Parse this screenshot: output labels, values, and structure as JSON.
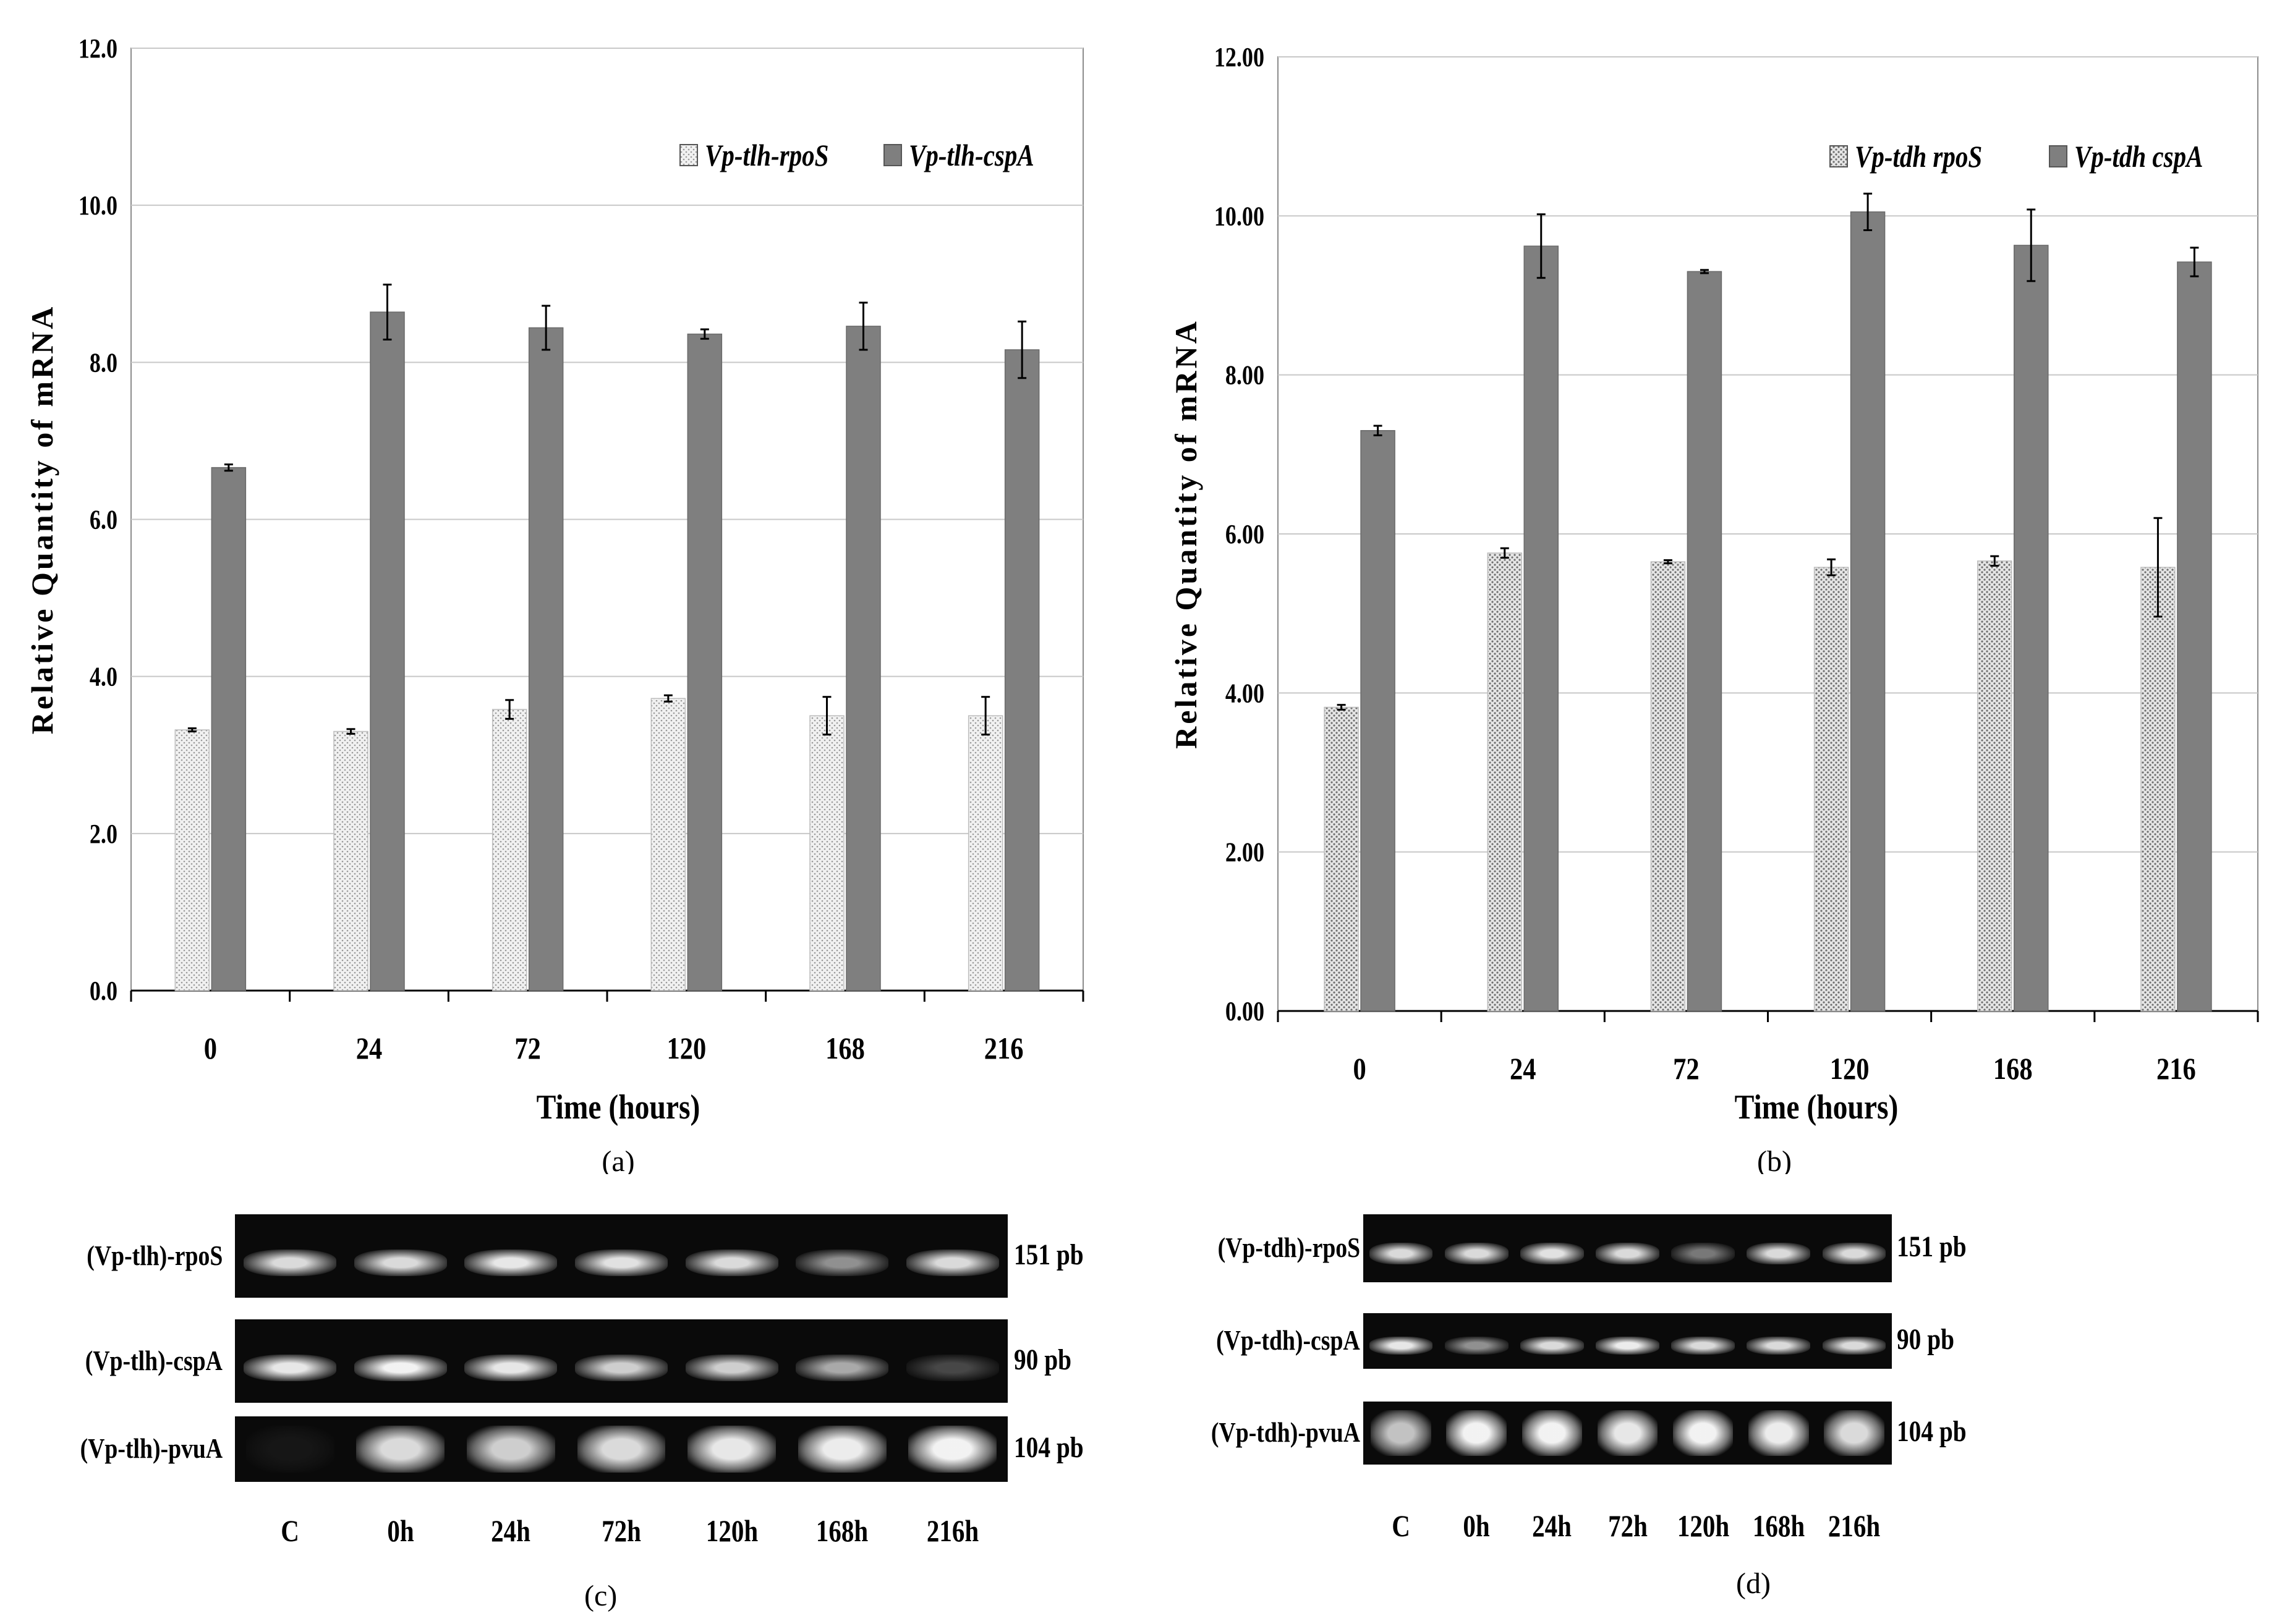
{
  "chart_data": [
    {
      "type": "bar",
      "caption": "(a)",
      "categories": [
        "0",
        "24",
        "72",
        "120",
        "168",
        "216"
      ],
      "xlabel": "Time (hours)",
      "ylabel": "Relative Quantity of mRNA",
      "ylim": [
        0,
        12
      ],
      "yticks": [
        "0.0",
        "2.0",
        "4.0",
        "6.0",
        "8.0",
        "10.0",
        "12.0"
      ],
      "grid": true,
      "legend": "top-right",
      "series": [
        {
          "name": "Vp-tlh-rpoS",
          "pattern": "dotted-light",
          "values": [
            3.32,
            3.3,
            3.58,
            3.72,
            3.5,
            3.5
          ],
          "errors": [
            0.02,
            0.03,
            0.12,
            0.04,
            0.24,
            0.24
          ]
        },
        {
          "name": "Vp-tlh-cspA",
          "color": "#7f7f7f",
          "values": [
            6.66,
            8.64,
            8.44,
            8.36,
            8.46,
            8.16
          ],
          "errors": [
            0.04,
            0.35,
            0.28,
            0.06,
            0.3,
            0.36
          ]
        }
      ]
    },
    {
      "type": "bar",
      "caption": "(b)",
      "categories": [
        "0",
        "24",
        "72",
        "120",
        "168",
        "216"
      ],
      "xlabel": "Time (hours)",
      "ylabel": "Relative Quantity of mRNA",
      "ylim": [
        0,
        12
      ],
      "yticks": [
        "0.00",
        "2.00",
        "4.00",
        "6.00",
        "8.00",
        "10.00",
        "12.00"
      ],
      "grid": true,
      "legend": "top-right",
      "series": [
        {
          "name": "Vp-tdh rpoS",
          "pattern": "dotted-dark",
          "values": [
            3.82,
            5.76,
            5.65,
            5.58,
            5.66,
            5.58
          ],
          "errors": [
            0.03,
            0.06,
            0.02,
            0.1,
            0.06,
            0.62
          ]
        },
        {
          "name": "Vp-tdh cspA",
          "color": "#7f7f7f",
          "values": [
            7.3,
            9.62,
            9.3,
            10.05,
            9.63,
            9.42
          ],
          "errors": [
            0.06,
            0.4,
            0.02,
            0.23,
            0.45,
            0.18
          ]
        }
      ]
    }
  ],
  "gels": [
    {
      "caption": "(c)",
      "rows": [
        {
          "label": "(Vp-tlh)-rpoS",
          "size": "151 pb"
        },
        {
          "label": "(Vp-tlh)-cspA",
          "size": "90 pb"
        },
        {
          "label": "(Vp-tlh)-pvuA",
          "size": "104 pb"
        }
      ],
      "lanes": [
        "C",
        "0h",
        "24h",
        "72h",
        "120h",
        "168h",
        "216h"
      ]
    },
    {
      "caption": "(d)",
      "rows": [
        {
          "label": "(Vp-tdh)-rpoS",
          "size": "151 pb"
        },
        {
          "label": "(Vp-tdh)-cspA",
          "size": "90 pb"
        },
        {
          "label": "(Vp-tdh)-pvuA",
          "size": "104 pb"
        }
      ],
      "lanes": [
        "C",
        "0h",
        "24h",
        "72h",
        "120h",
        "168h",
        "216h"
      ]
    }
  ]
}
